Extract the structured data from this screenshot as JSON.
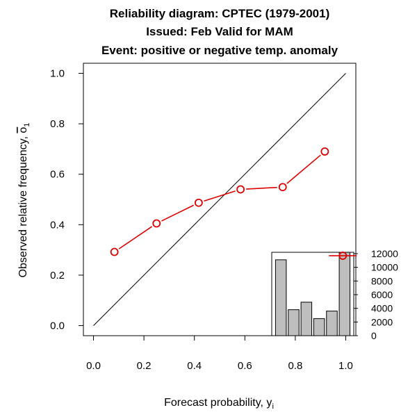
{
  "chart_data": {
    "type": "line",
    "title_lines": [
      "Reliability diagram: CPTEC (1979-2001)",
      "Issued: Feb       Valid for MAM",
      "Event: positive or negative temp. anomaly"
    ],
    "xlabel": "Forecast probability, y",
    "xlabel_subscript": "i",
    "ylabel": "Observed relative frequency, ",
    "ylabel_symbol": "o",
    "ylabel_subscript": "1",
    "xlim": [
      -0.04,
      1.04
    ],
    "ylim": [
      -0.04,
      1.04
    ],
    "xticks": [
      "0.0",
      "0.2",
      "0.4",
      "0.6",
      "0.8",
      "1.0"
    ],
    "yticks": [
      "0.0",
      "0.2",
      "0.4",
      "0.6",
      "0.8",
      "1.0"
    ],
    "diagonal": [
      [
        0,
        0
      ],
      [
        1,
        1
      ]
    ],
    "series": [
      {
        "name": "reliability",
        "color": "#dd0000",
        "x": [
          0.083,
          0.25,
          0.417,
          0.583,
          0.75,
          0.917
        ],
        "y": [
          0.292,
          0.405,
          0.487,
          0.54,
          0.549,
          0.69
        ]
      }
    ],
    "inset": {
      "type": "bar",
      "bar_color": "#bebebe",
      "values": [
        11100,
        3800,
        4900,
        2500,
        3600,
        12200
      ],
      "ylim": [
        0,
        12200
      ],
      "yticks": [
        "0",
        "2000",
        "4000",
        "6000",
        "8000",
        "10000",
        "12000"
      ],
      "marker_x": 0.867,
      "marker_value": 11700,
      "marker_color": "#dd0000"
    }
  }
}
